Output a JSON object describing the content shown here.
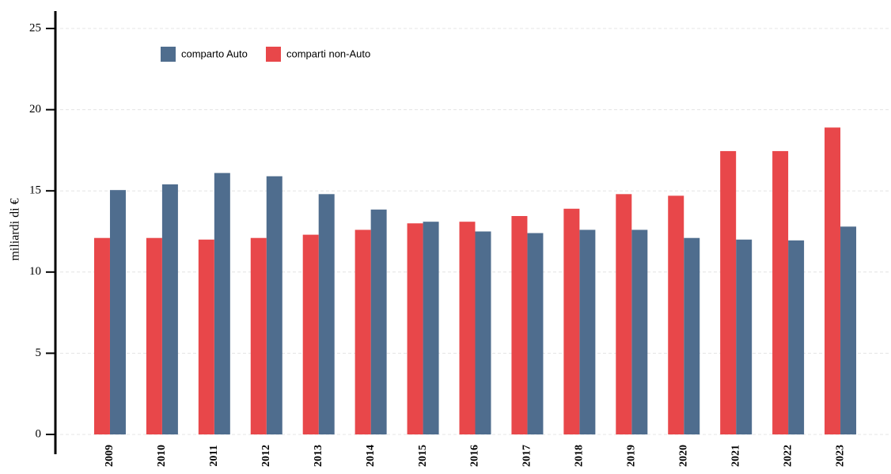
{
  "chart_data": {
    "type": "bar",
    "y_label": "miliardi di €",
    "categories": [
      "2009",
      "2010",
      "2011",
      "2012",
      "2013",
      "2014",
      "2015",
      "2016",
      "2017",
      "2018",
      "2019",
      "2020",
      "2021",
      "2022",
      "2023"
    ],
    "series": [
      {
        "name": "comparto Auto",
        "color": "#4f6d8e",
        "values": [
          15.05,
          15.4,
          16.1,
          15.9,
          14.8,
          13.85,
          13.1,
          12.5,
          12.4,
          12.6,
          12.6,
          12.1,
          12.0,
          11.95,
          12.8
        ]
      },
      {
        "name": "comparti non-Auto",
        "color": "#e8474a",
        "values": [
          12.1,
          12.1,
          12.0,
          12.1,
          12.3,
          12.6,
          13.0,
          13.1,
          13.45,
          13.9,
          14.8,
          14.7,
          17.45,
          17.45,
          18.9
        ]
      }
    ],
    "ylim": [
      0,
      25
    ],
    "yticks": [
      0,
      5,
      10,
      15,
      20,
      25
    ],
    "grid": true,
    "legend": "top-left"
  }
}
